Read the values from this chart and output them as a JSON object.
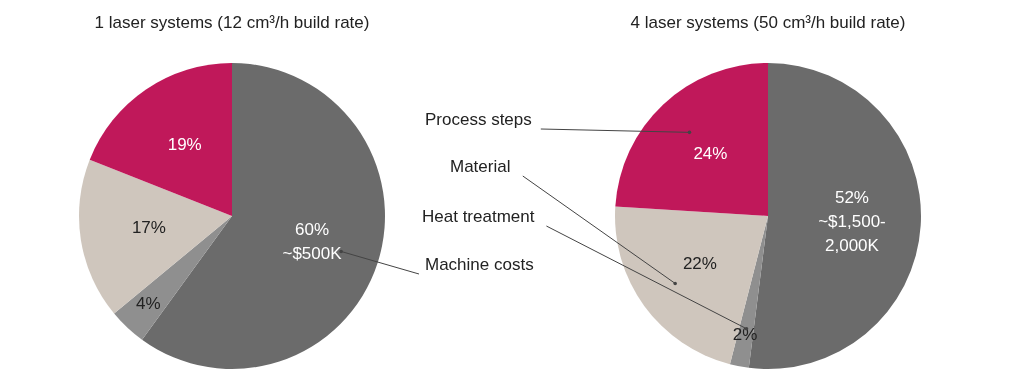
{
  "chart_data": [
    {
      "type": "pie",
      "title": "1 laser systems (12 cm³/h build rate)",
      "categories": [
        "Machine costs",
        null,
        null,
        null
      ],
      "values": [
        60,
        4,
        17,
        19
      ],
      "colors": [
        "#6b6b6b",
        "#8f8f8f",
        "#cfc6bd",
        "#c0185a"
      ],
      "value_labels": [
        "60%\n~$500K",
        "4%",
        "17%",
        "19%"
      ]
    },
    {
      "type": "pie",
      "title": "4 laser systems (50 cm³/h build rate)",
      "categories": [
        null,
        "Heat treatment",
        "Material",
        "Process steps"
      ],
      "values": [
        52,
        2,
        22,
        24
      ],
      "colors": [
        "#6b6b6b",
        "#8f8f8f",
        "#cfc6bd",
        "#c0185a"
      ],
      "value_labels": [
        "52%\n~$1,500-\n2,000K",
        "2%",
        "22%",
        "24%"
      ]
    }
  ]
}
